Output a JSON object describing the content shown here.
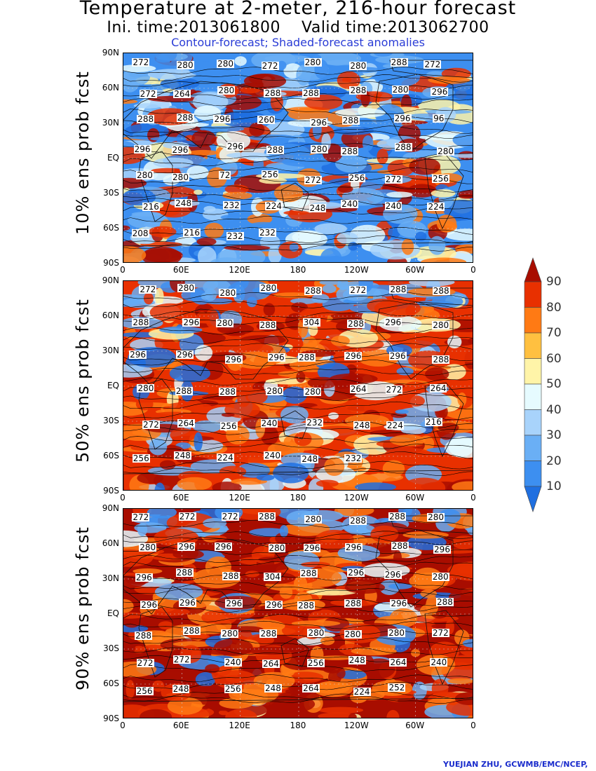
{
  "title": {
    "main": "Temperature at 2-meter, 216-hour forecast",
    "times": "Ini. time:2013061800    Valid time:2013062700",
    "legend_note": "Contour-forecast; Shaded-forecast anomalies"
  },
  "axes": {
    "lat_ticks": [
      "90N",
      "60N",
      "30N",
      "EQ",
      "30S",
      "60S",
      "90S"
    ],
    "lon_ticks": [
      "0",
      "60E",
      "120E",
      "180",
      "120W",
      "60W",
      "0"
    ]
  },
  "panels": [
    {
      "label": "10% ens prob fcst",
      "contour_labels": [
        "272",
        "280",
        "280",
        "272",
        "280",
        "280",
        "288",
        "272",
        "272",
        "264",
        "280",
        "288",
        "288",
        "288",
        "280",
        "296",
        "288",
        "288",
        "296",
        "260",
        "296",
        "288",
        "296",
        "96",
        "296",
        "296",
        "296",
        "288",
        "280",
        "288",
        "288",
        "280",
        "280",
        "280",
        "72",
        "256",
        "272",
        "256",
        "272",
        "256",
        "216",
        "248",
        "232",
        "224",
        "248",
        "240",
        "240",
        "224",
        "208",
        "216",
        "232",
        "232"
      ]
    },
    {
      "label": "50% ens prob fcst",
      "contour_labels": [
        "272",
        "280",
        "280",
        "280",
        "288",
        "272",
        "288",
        "288",
        "288",
        "296",
        "280",
        "288",
        "304",
        "288",
        "296",
        "280",
        "296",
        "296",
        "296",
        "296",
        "288",
        "296",
        "296",
        "288",
        "280",
        "288",
        "288",
        "280",
        "280",
        "264",
        "272",
        "264",
        "272",
        "264",
        "256",
        "240",
        "232",
        "248",
        "224",
        "216",
        "256",
        "248",
        "224",
        "240",
        "248",
        "232"
      ]
    },
    {
      "label": "90% ens prob fcst",
      "contour_labels": [
        "272",
        "272",
        "272",
        "288",
        "280",
        "288",
        "288",
        "280",
        "280",
        "296",
        "296",
        "280",
        "296",
        "296",
        "288",
        "296",
        "296",
        "288",
        "288",
        "304",
        "288",
        "296",
        "296",
        "280",
        "296",
        "296",
        "296",
        "296",
        "288",
        "288",
        "296",
        "288",
        "288",
        "288",
        "280",
        "288",
        "280",
        "280",
        "280",
        "272",
        "272",
        "272",
        "240",
        "264",
        "256",
        "248",
        "264",
        "240",
        "256",
        "248",
        "256",
        "248",
        "264",
        "224",
        "252"
      ]
    }
  ],
  "colorbar": {
    "levels": [
      "10",
      "20",
      "30",
      "40",
      "50",
      "60",
      "70",
      "80",
      "90"
    ],
    "colors": [
      "#1f6fe0",
      "#3d8ff0",
      "#6aaff5",
      "#a8d3fb",
      "#e6fbff",
      "#fff4a8",
      "#ffc040",
      "#ff7a14",
      "#e83000",
      "#a80d00"
    ]
  },
  "footer": "YUEJIAN ZHU, GCWMB/EMC/NCEP,"
}
